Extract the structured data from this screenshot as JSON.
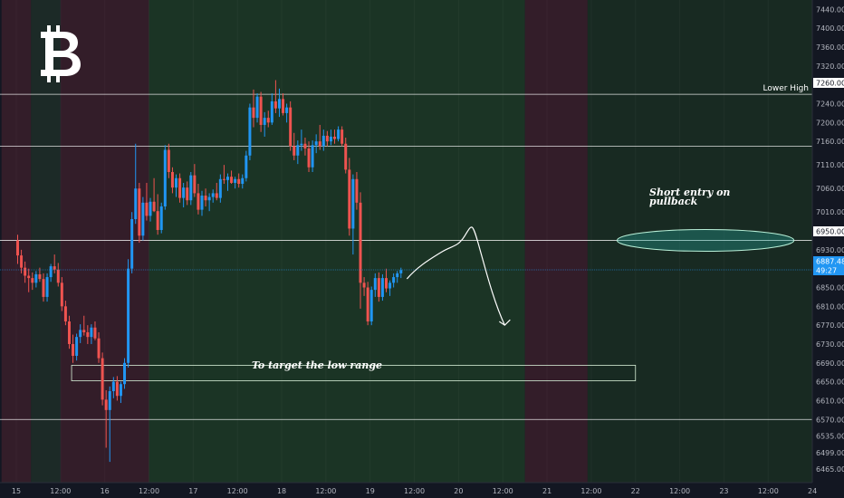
{
  "chart_data": {
    "type": "candlestick",
    "symbol_icon": "bitcoin-icon",
    "y_axis": {
      "ticks": [
        "7440.00",
        "7400.00",
        "7360.00",
        "7320.00",
        "7280.00",
        "7240.00",
        "7200.00",
        "7160.00",
        "7110.00",
        "7060.00",
        "7010.00",
        "6970.00",
        "6930.00",
        "6850.00",
        "6810.00",
        "6770.00",
        "6730.00",
        "6690.00",
        "6650.00",
        "6610.00",
        "6570.00",
        "6535.00",
        "6499.00",
        "6465.00"
      ],
      "range": [
        6450,
        7460
      ]
    },
    "x_axis": {
      "ticks": [
        {
          "label": "15",
          "slot": 0
        },
        {
          "label": "12:00",
          "slot": 12
        },
        {
          "label": "16",
          "slot": 24
        },
        {
          "label": "12:00",
          "slot": 36
        },
        {
          "label": "17",
          "slot": 48
        },
        {
          "label": "12:00",
          "slot": 60
        },
        {
          "label": "18",
          "slot": 72
        },
        {
          "label": "12:00",
          "slot": 84
        },
        {
          "label": "19",
          "slot": 96
        },
        {
          "label": "12:00",
          "slot": 108
        },
        {
          "label": "20",
          "slot": 120
        },
        {
          "label": "12:00",
          "slot": 132
        },
        {
          "label": "21",
          "slot": 144
        },
        {
          "label": "12:00",
          "slot": 156
        },
        {
          "label": "22",
          "slot": 168
        },
        {
          "label": "12:00",
          "slot": 180
        },
        {
          "label": "23",
          "slot": 192
        },
        {
          "label": "12:00",
          "slot": 204
        },
        {
          "label": "24",
          "slot": 216
        }
      ]
    },
    "price_tags": {
      "resistance": "7260.00",
      "entry": "6950.00",
      "current": "6887.48",
      "countdown": "49:27"
    },
    "levels": [
      {
        "price": 7260,
        "label": "Lower High"
      },
      {
        "price": 7150,
        "label": ""
      },
      {
        "price": 6950,
        "label": ""
      },
      {
        "price": 6570,
        "label": ""
      }
    ],
    "current_price": 6887.48,
    "annotations": {
      "short_entry": "Short entry on pullback",
      "target_range": "To target the low range"
    },
    "target_box": {
      "price_top": 6685,
      "price_bottom": 6652,
      "slot_start": 15,
      "slot_end": 168
    },
    "entry_ellipse": {
      "price": 6950,
      "slot_start": 163,
      "slot_end": 211
    },
    "sessions": [
      {
        "slot_start": -4,
        "slot_end": 4,
        "color": "#3a1f2a"
      },
      {
        "slot_start": 4,
        "slot_end": 12,
        "color": "#1f2e28"
      },
      {
        "slot_start": 12,
        "slot_end": 36,
        "color": "#3a1f2a"
      },
      {
        "slot_start": 36,
        "slot_end": 138,
        "color": "#1d3a26"
      },
      {
        "slot_start": 138,
        "slot_end": 155,
        "color": "#3a1f2a"
      },
      {
        "slot_start": 155,
        "slot_end": 218,
        "color": "#1a2e22"
      }
    ],
    "candles": [
      [
        6950,
        6962,
        6900,
        6918
      ],
      [
        6918,
        6930,
        6880,
        6892
      ],
      [
        6892,
        6905,
        6860,
        6875
      ],
      [
        6875,
        6890,
        6840,
        6870
      ],
      [
        6870,
        6882,
        6845,
        6860
      ],
      [
        6860,
        6885,
        6850,
        6878
      ],
      [
        6878,
        6892,
        6862,
        6868
      ],
      [
        6868,
        6880,
        6820,
        6830
      ],
      [
        6830,
        6880,
        6820,
        6872
      ],
      [
        6872,
        6900,
        6862,
        6895
      ],
      [
        6895,
        6920,
        6880,
        6888
      ],
      [
        6888,
        6902,
        6852,
        6860
      ],
      [
        6860,
        6872,
        6800,
        6810
      ],
      [
        6810,
        6822,
        6770,
        6778
      ],
      [
        6778,
        6790,
        6720,
        6730
      ],
      [
        6730,
        6750,
        6690,
        6705
      ],
      [
        6705,
        6752,
        6695,
        6745
      ],
      [
        6745,
        6772,
        6732,
        6760
      ],
      [
        6760,
        6790,
        6748,
        6755
      ],
      [
        6755,
        6770,
        6730,
        6745
      ],
      [
        6745,
        6772,
        6730,
        6765
      ],
      [
        6765,
        6778,
        6738,
        6742
      ],
      [
        6742,
        6755,
        6690,
        6700
      ],
      [
        6700,
        6712,
        6600,
        6612
      ],
      [
        6612,
        6632,
        6510,
        6590
      ],
      [
        6590,
        6640,
        6480,
        6630
      ],
      [
        6630,
        6660,
        6615,
        6650
      ],
      [
        6650,
        6662,
        6610,
        6620
      ],
      [
        6620,
        6650,
        6605,
        6645
      ],
      [
        6645,
        6700,
        6635,
        6690
      ],
      [
        6690,
        6910,
        6680,
        6890
      ],
      [
        6890,
        7010,
        6880,
        6995
      ],
      [
        6995,
        7155,
        6985,
        7060
      ],
      [
        7060,
        7072,
        6945,
        6960
      ],
      [
        6960,
        7042,
        6950,
        7030
      ],
      [
        7030,
        7072,
        6992,
        7002
      ],
      [
        7002,
        7040,
        6990,
        7032
      ],
      [
        7032,
        7082,
        7010,
        7012
      ],
      [
        7012,
        7048,
        6962,
        6972
      ],
      [
        6972,
        7030,
        6965,
        7022
      ],
      [
        7022,
        7152,
        7015,
        7142
      ],
      [
        7142,
        7155,
        7082,
        7095
      ],
      [
        7095,
        7105,
        7050,
        7062
      ],
      [
        7062,
        7090,
        7042,
        7082
      ],
      [
        7082,
        7092,
        7030,
        7040
      ],
      [
        7040,
        7072,
        7020,
        7062
      ],
      [
        7062,
        7075,
        7025,
        7035
      ],
      [
        7035,
        7095,
        7025,
        7088
      ],
      [
        7088,
        7112,
        7042,
        7050
      ],
      [
        7050,
        7070,
        7005,
        7015
      ],
      [
        7015,
        7055,
        7002,
        7045
      ],
      [
        7045,
        7060,
        7022,
        7035
      ],
      [
        7035,
        7050,
        7012,
        7042
      ],
      [
        7042,
        7058,
        7030,
        7050
      ],
      [
        7050,
        7072,
        7035,
        7040
      ],
      [
        7040,
        7090,
        7030,
        7080
      ],
      [
        7080,
        7110,
        7070,
        7078
      ],
      [
        7078,
        7092,
        7055,
        7085
      ],
      [
        7085,
        7098,
        7070,
        7072
      ],
      [
        7072,
        7085,
        7060,
        7080
      ],
      [
        7080,
        7092,
        7062,
        7070
      ],
      [
        7070,
        7090,
        7060,
        7082
      ],
      [
        7082,
        7140,
        7075,
        7130
      ],
      [
        7130,
        7240,
        7120,
        7232
      ],
      [
        7232,
        7270,
        7190,
        7210
      ],
      [
        7210,
        7262,
        7200,
        7255
      ],
      [
        7255,
        7265,
        7180,
        7195
      ],
      [
        7195,
        7222,
        7170,
        7210
      ],
      [
        7210,
        7225,
        7190,
        7200
      ],
      [
        7200,
        7262,
        7195,
        7245
      ],
      [
        7245,
        7290,
        7220,
        7230
      ],
      [
        7230,
        7272,
        7212,
        7250
      ],
      [
        7250,
        7262,
        7215,
        7220
      ],
      [
        7220,
        7240,
        7200,
        7232
      ],
      [
        7232,
        7245,
        7140,
        7150
      ],
      [
        7150,
        7178,
        7120,
        7130
      ],
      [
        7130,
        7162,
        7112,
        7152
      ],
      [
        7152,
        7185,
        7140,
        7155
      ],
      [
        7155,
        7168,
        7130,
        7145
      ],
      [
        7145,
        7160,
        7095,
        7105
      ],
      [
        7105,
        7162,
        7095,
        7152
      ],
      [
        7152,
        7175,
        7135,
        7160
      ],
      [
        7160,
        7195,
        7142,
        7150
      ],
      [
        7150,
        7185,
        7140,
        7172
      ],
      [
        7172,
        7182,
        7150,
        7160
      ],
      [
        7160,
        7185,
        7152,
        7170
      ],
      [
        7170,
        7185,
        7155,
        7165
      ],
      [
        7165,
        7192,
        7160,
        7185
      ],
      [
        7185,
        7192,
        7150,
        7155
      ],
      [
        7155,
        7168,
        7092,
        7100
      ],
      [
        7100,
        7125,
        6960,
        6975
      ],
      [
        6975,
        7090,
        6920,
        7080
      ],
      [
        7080,
        7095,
        7015,
        7030
      ],
      [
        7030,
        7052,
        6805,
        6860
      ],
      [
        6860,
        6872,
        6832,
        6850
      ],
      [
        6850,
        6862,
        6770,
        6778
      ],
      [
        6778,
        6852,
        6770,
        6845
      ],
      [
        6845,
        6880,
        6830,
        6870
      ],
      [
        6870,
        6882,
        6820,
        6830
      ],
      [
        6830,
        6878,
        6822,
        6870
      ],
      [
        6870,
        6890,
        6840,
        6848
      ],
      [
        6848,
        6865,
        6832,
        6860
      ],
      [
        6860,
        6880,
        6850,
        6872
      ],
      [
        6872,
        6885,
        6860,
        6880
      ],
      [
        6880,
        6892,
        6870,
        6887
      ]
    ]
  }
}
